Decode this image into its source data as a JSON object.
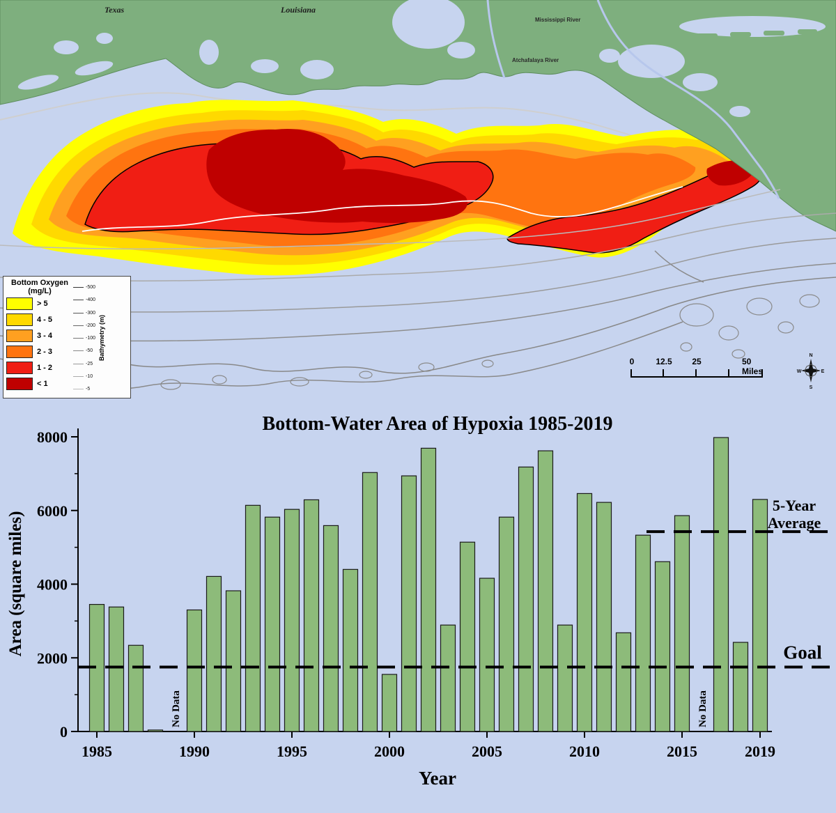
{
  "map": {
    "region_labels": {
      "texas": "Texas",
      "louisiana": "Louisiana",
      "mississippi_river": "Mississippi River",
      "atchafalaya_river": "Atchafalaya River"
    },
    "legend": {
      "title_line1": "Bottom Oxygen",
      "title_line2": "(mg/L)",
      "classes": [
        {
          "label": "> 5",
          "color": "#ffff00"
        },
        {
          "label": "4 - 5",
          "color": "#ffd900"
        },
        {
          "label": "3 - 4",
          "color": "#ffa020"
        },
        {
          "label": "2 - 3",
          "color": "#ff7410"
        },
        {
          "label": "1 - 2",
          "color": "#f01e14"
        },
        {
          "label": "< 1",
          "color": "#bf0000"
        }
      ],
      "bathymetry_title": "Bathymetry (m)",
      "bathymetry_depths": [
        "-500",
        "-400",
        "-300",
        "-200",
        "-100",
        "-50",
        "-25",
        "-10",
        "-5"
      ]
    },
    "scale_bar": {
      "tick_labels": [
        "0",
        "12.5",
        "25"
      ],
      "end_label": "50 Miles"
    },
    "compass": {
      "n": "N",
      "e": "E",
      "s": "S",
      "w": "W"
    }
  },
  "chart_data": {
    "type": "bar",
    "title": "Bottom-Water Area of Hypoxia 1985-2019",
    "xlabel": "Year",
    "ylabel": "Area (square miles)",
    "ylim": [
      0,
      8000
    ],
    "yticks": [
      0,
      2000,
      4000,
      6000,
      8000
    ],
    "xtick_years": [
      1985,
      1990,
      1995,
      2000,
      2005,
      2010,
      2015,
      2019
    ],
    "categories": [
      1985,
      1986,
      1987,
      1988,
      1989,
      1990,
      1991,
      1992,
      1993,
      1994,
      1995,
      1996,
      1997,
      1998,
      1999,
      2000,
      2001,
      2002,
      2003,
      2004,
      2005,
      2006,
      2007,
      2008,
      2009,
      2010,
      2011,
      2012,
      2013,
      2014,
      2015,
      2016,
      2017,
      2018,
      2019
    ],
    "values": [
      3450,
      3380,
      2340,
      40,
      null,
      3300,
      4210,
      3820,
      6140,
      5820,
      6030,
      6290,
      5590,
      4400,
      7030,
      1550,
      6940,
      7690,
      2890,
      5140,
      4160,
      5820,
      7180,
      7620,
      2890,
      6460,
      6220,
      2680,
      5330,
      4610,
      5860,
      null,
      7980,
      2420,
      6300
    ],
    "no_data_label": "No Data",
    "bar_color": "#8dbb7a",
    "bar_border_color": "#1a1a1a",
    "grid": false,
    "legend_position": "none",
    "reference_lines": {
      "goal": {
        "value": 1750,
        "label": "Goal"
      },
      "five_year_average": {
        "value": 5425,
        "label_line1": "5-Year",
        "label_line2": "Average"
      }
    }
  }
}
